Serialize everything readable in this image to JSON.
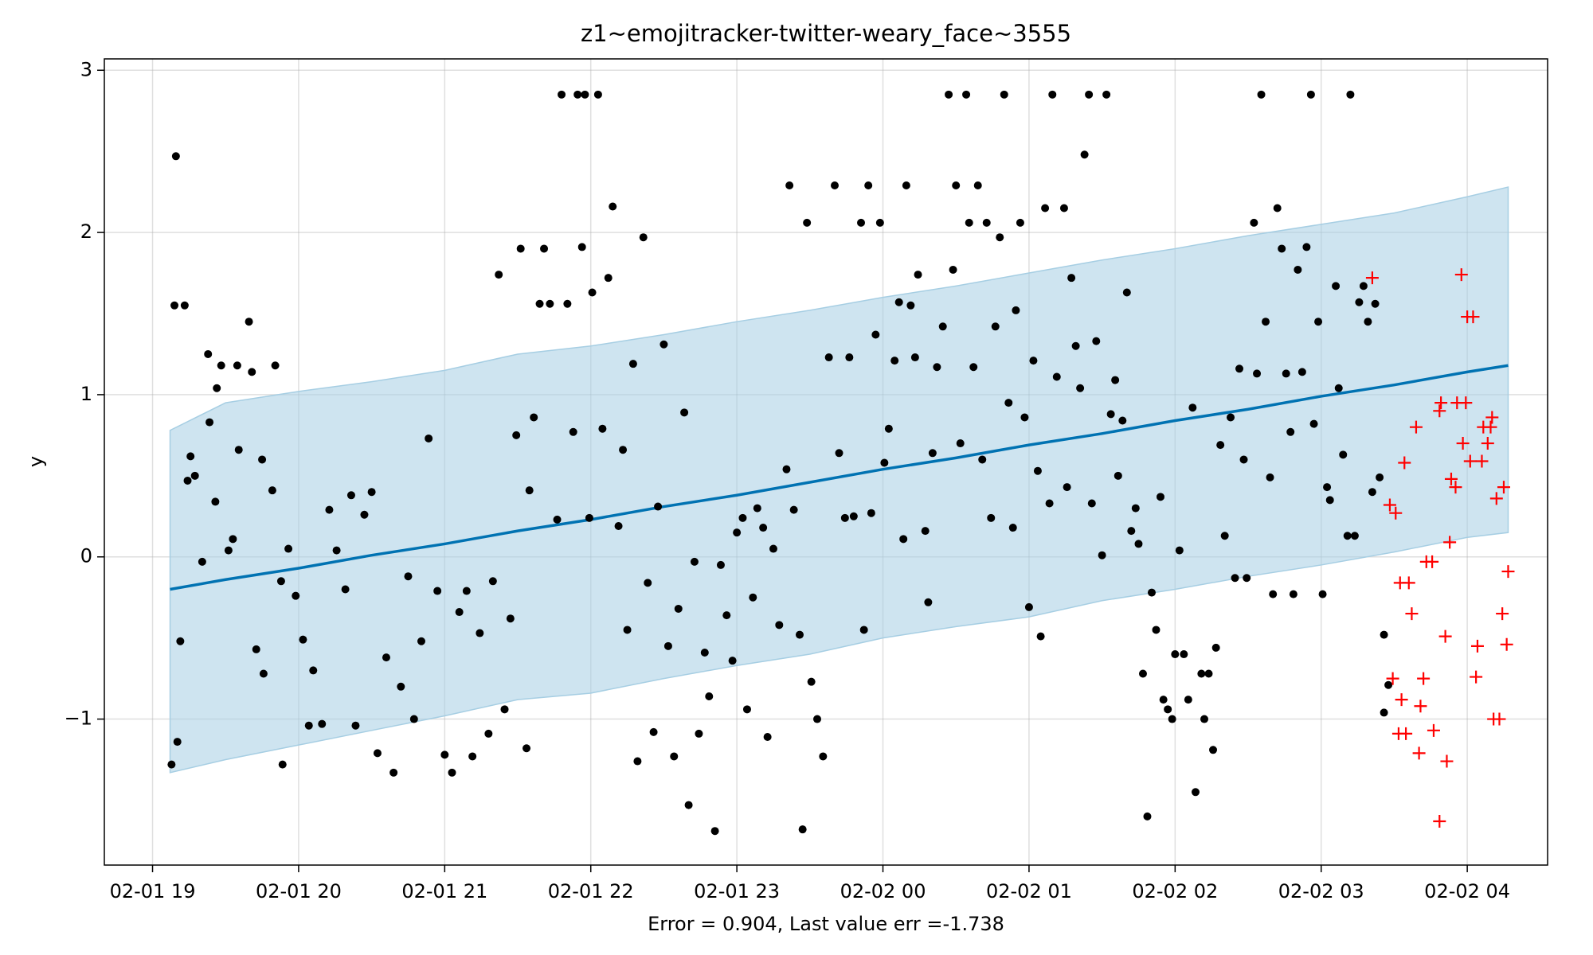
{
  "chart_data": {
    "type": "scatter",
    "title": "z1~emojitracker-twitter-weary_face~3555",
    "xlabel": "Error = 0.904, Last value err =-1.738",
    "ylabel": "y",
    "xlim": [
      -0.33,
      9.55
    ],
    "ylim": [
      -1.9,
      3.07
    ],
    "xticks": [
      {
        "value": 0,
        "label": "02-01 19"
      },
      {
        "value": 1,
        "label": "02-01 20"
      },
      {
        "value": 2,
        "label": "02-01 21"
      },
      {
        "value": 3,
        "label": "02-01 22"
      },
      {
        "value": 4,
        "label": "02-01 23"
      },
      {
        "value": 5,
        "label": "02-02 00"
      },
      {
        "value": 6,
        "label": "02-02 01"
      },
      {
        "value": 7,
        "label": "02-02 02"
      },
      {
        "value": 8,
        "label": "02-02 03"
      },
      {
        "value": 9,
        "label": "02-02 04"
      }
    ],
    "yticks": [
      {
        "value": -1,
        "label": "−1"
      },
      0,
      1,
      2,
      3
    ],
    "grid": true,
    "series": [
      {
        "type": "band",
        "color": "#a6cee3",
        "x": [
          0.12,
          0.5,
          1,
          1.5,
          2,
          2.5,
          3,
          3.5,
          4,
          4.5,
          5,
          5.5,
          6,
          6.5,
          7,
          7.5,
          8,
          8.5,
          9,
          9.28
        ],
        "upper": [
          0.78,
          0.95,
          1.02,
          1.08,
          1.15,
          1.25,
          1.3,
          1.37,
          1.45,
          1.52,
          1.6,
          1.67,
          1.75,
          1.83,
          1.9,
          1.98,
          2.05,
          2.12,
          2.22,
          2.28
        ],
        "lower": [
          -1.33,
          -1.25,
          -1.16,
          -1.07,
          -0.98,
          -0.88,
          -0.84,
          -0.75,
          -0.67,
          -0.6,
          -0.5,
          -0.43,
          -0.37,
          -0.27,
          -0.2,
          -0.12,
          -0.05,
          0.03,
          0.12,
          0.15
        ]
      },
      {
        "type": "line",
        "color": "#0072b2",
        "x": [
          0.12,
          0.5,
          1,
          1.5,
          2,
          2.5,
          3,
          3.5,
          4,
          4.5,
          5,
          5.5,
          6,
          6.5,
          7,
          7.5,
          8,
          8.5,
          9,
          9.28
        ],
        "values": [
          -0.2,
          -0.14,
          -0.07,
          0.01,
          0.08,
          0.16,
          0.23,
          0.31,
          0.38,
          0.46,
          0.54,
          0.61,
          0.69,
          0.76,
          0.84,
          0.91,
          0.99,
          1.06,
          1.14,
          1.18
        ]
      },
      {
        "type": "scatter",
        "marker": "dot",
        "color": "#000000",
        "x": [
          0.16,
          0.15,
          0.22,
          0.19,
          0.17,
          0.13,
          0.24,
          0.26,
          0.29,
          0.34,
          0.39,
          0.38,
          0.43,
          0.44,
          0.47,
          0.52,
          0.55,
          0.58,
          0.59,
          0.68,
          0.66,
          0.71,
          0.75,
          0.76,
          0.82,
          0.84,
          0.88,
          0.89,
          0.93,
          0.98,
          1.03,
          1.07,
          1.1,
          1.16,
          1.21,
          1.26,
          1.32,
          1.36,
          1.39,
          1.45,
          1.5,
          1.54,
          1.6,
          1.65,
          1.7,
          1.75,
          1.79,
          1.84,
          1.89,
          1.95,
          2.0,
          2.05,
          2.1,
          2.15,
          2.19,
          2.24,
          2.3,
          2.33,
          2.37,
          2.41,
          2.45,
          2.49,
          2.52,
          2.56,
          2.58,
          2.61,
          2.65,
          2.68,
          2.72,
          2.77,
          2.8,
          2.84,
          2.88,
          2.91,
          2.94,
          2.96,
          2.99,
          3.01,
          3.05,
          3.08,
          3.12,
          3.15,
          3.19,
          3.22,
          3.25,
          3.29,
          3.32,
          3.36,
          3.39,
          3.43,
          3.46,
          3.5,
          3.53,
          3.57,
          3.6,
          3.64,
          3.67,
          3.71,
          3.74,
          3.78,
          3.81,
          3.85,
          3.89,
          3.93,
          3.97,
          4.0,
          4.04,
          4.07,
          4.11,
          4.14,
          4.18,
          4.21,
          4.25,
          4.29,
          4.34,
          4.36,
          4.39,
          4.43,
          4.45,
          4.48,
          4.51,
          4.55,
          4.59,
          4.63,
          4.67,
          4.7,
          4.74,
          4.77,
          4.8,
          4.85,
          4.87,
          4.9,
          4.92,
          4.95,
          4.98,
          5.01,
          5.04,
          5.08,
          5.11,
          5.14,
          5.16,
          5.19,
          5.22,
          5.24,
          5.29,
          5.31,
          5.34,
          5.37,
          5.41,
          5.45,
          5.48,
          5.5,
          5.53,
          5.57,
          5.59,
          5.62,
          5.65,
          5.68,
          5.71,
          5.74,
          5.77,
          5.8,
          5.83,
          5.86,
          5.89,
          5.91,
          5.94,
          5.97,
          6.0,
          6.03,
          6.06,
          6.08,
          6.11,
          6.14,
          6.16,
          6.19,
          6.24,
          6.26,
          6.29,
          6.32,
          6.35,
          6.38,
          6.41,
          6.43,
          6.46,
          6.5,
          6.53,
          6.56,
          6.59,
          6.61,
          6.64,
          6.67,
          6.7,
          6.73,
          6.75,
          6.78,
          6.81,
          6.84,
          6.87,
          6.9,
          6.92,
          6.95,
          6.98,
          7.0,
          7.03,
          7.06,
          7.09,
          7.12,
          7.14,
          7.18,
          7.2,
          7.23,
          7.26,
          7.28,
          7.31,
          7.34,
          7.38,
          7.41,
          7.44,
          7.47,
          7.49,
          7.54,
          7.56,
          7.59,
          7.62,
          7.65,
          7.67,
          7.7,
          7.73,
          7.76,
          7.79,
          7.81,
          7.84,
          7.87,
          7.9,
          7.93,
          7.95,
          7.98,
          8.01,
          8.04,
          8.06,
          8.1,
          8.12,
          8.15,
          8.18,
          8.2,
          8.23,
          8.26,
          8.29,
          8.32,
          8.35,
          8.37,
          8.4,
          8.43,
          8.43,
          8.46
        ],
        "values": [
          2.47,
          1.55,
          1.55,
          -0.52,
          -1.14,
          -1.28,
          0.47,
          0.62,
          0.5,
          -0.03,
          0.83,
          1.25,
          0.34,
          1.04,
          1.18,
          0.04,
          0.11,
          1.18,
          0.66,
          1.14,
          1.45,
          -0.57,
          0.6,
          -0.72,
          0.41,
          1.18,
          -0.15,
          -1.28,
          0.05,
          -0.24,
          -0.51,
          -1.04,
          -0.7,
          -1.03,
          0.29,
          0.04,
          -0.2,
          0.38,
          -1.04,
          0.26,
          0.4,
          -1.21,
          -0.62,
          -1.33,
          -0.8,
          -0.12,
          -1.0,
          -0.52,
          0.73,
          -0.21,
          -1.22,
          -1.33,
          -0.34,
          -0.21,
          -1.23,
          -0.47,
          -1.09,
          -0.15,
          1.74,
          -0.94,
          -0.38,
          0.75,
          1.9,
          -1.18,
          0.41,
          0.86,
          1.56,
          1.9,
          1.56,
          0.23,
          2.85,
          1.56,
          0.77,
          2.85,
          1.91,
          2.85,
          0.24,
          1.63,
          2.85,
          0.79,
          1.72,
          2.16,
          0.19,
          0.66,
          -0.45,
          1.19,
          -1.26,
          1.97,
          -0.16,
          -1.08,
          0.31,
          1.31,
          -0.55,
          -1.23,
          -0.32,
          0.89,
          -1.53,
          -0.03,
          -1.09,
          -0.59,
          -0.86,
          -1.69,
          -0.05,
          -0.36,
          -0.64,
          0.15,
          0.24,
          -0.94,
          -0.25,
          0.3,
          0.18,
          -1.11,
          0.05,
          -0.42,
          0.54,
          2.29,
          0.29,
          -0.48,
          -1.68,
          2.06,
          -0.77,
          -1.0,
          -1.23,
          1.23,
          2.29,
          0.64,
          0.24,
          1.23,
          0.25,
          2.06,
          -0.45,
          2.29,
          0.27,
          1.37,
          2.06,
          0.58,
          0.79,
          1.21,
          1.57,
          0.11,
          2.29,
          1.55,
          1.23,
          1.74,
          0.16,
          -0.28,
          0.64,
          1.17,
          1.42,
          2.85,
          1.77,
          2.29,
          0.7,
          2.85,
          2.06,
          1.17,
          2.29,
          0.6,
          2.06,
          0.24,
          1.42,
          1.97,
          2.85,
          0.95,
          0.18,
          1.52,
          2.06,
          0.86,
          -0.31,
          1.21,
          0.53,
          -0.49,
          2.15,
          0.33,
          2.85,
          1.11,
          2.15,
          0.43,
          1.72,
          1.3,
          1.04,
          2.48,
          2.85,
          0.33,
          1.33,
          0.01,
          2.85,
          0.88,
          1.09,
          0.5,
          0.84,
          1.63,
          0.16,
          0.3,
          0.08,
          -0.72,
          -1.6,
          -0.22,
          -0.45,
          0.37,
          -0.88,
          -0.94,
          -1.0,
          -0.6,
          0.04,
          -0.6,
          -0.88,
          0.92,
          -1.45,
          -0.72,
          -1.0,
          -0.72,
          -1.19,
          -0.56,
          0.69,
          0.13,
          0.86,
          -0.13,
          1.16,
          0.6,
          -0.13,
          2.06,
          1.13,
          2.85,
          1.45,
          0.49,
          -0.23,
          2.15,
          1.9,
          1.13,
          0.77,
          -0.23,
          1.77,
          1.14,
          1.91,
          2.85,
          0.82,
          1.45,
          -0.23,
          0.43,
          0.35,
          1.67,
          1.04,
          0.63,
          0.13,
          2.85,
          0.13,
          1.57,
          1.67,
          1.45,
          0.4,
          1.56,
          0.49,
          -0.48,
          -0.96,
          -0.79
        ]
      },
      {
        "type": "scatter",
        "marker": "plus",
        "color": "#ff0000",
        "x": [
          8.35,
          8.47,
          8.51,
          8.54,
          8.57,
          8.6,
          8.62,
          8.65,
          8.49,
          8.55,
          8.53,
          8.58,
          8.67,
          8.7,
          8.68,
          8.72,
          8.76,
          8.77,
          8.81,
          8.81,
          8.82,
          8.85,
          8.86,
          8.88,
          8.89,
          8.92,
          8.93,
          8.96,
          8.97,
          8.99,
          9.0,
          9.02,
          9.04,
          9.06,
          9.07,
          9.1,
          9.11,
          9.14,
          9.16,
          9.17,
          9.18,
          9.2,
          9.22,
          9.24,
          9.25,
          9.27,
          9.28
        ],
        "values": [
          1.72,
          0.32,
          0.27,
          -0.16,
          0.58,
          -0.16,
          -0.35,
          0.8,
          -0.75,
          -0.88,
          -1.09,
          -1.09,
          -1.21,
          -0.75,
          -0.92,
          -0.03,
          -0.03,
          -1.07,
          -1.63,
          0.9,
          0.95,
          -0.49,
          -1.26,
          0.09,
          0.48,
          0.43,
          0.95,
          1.74,
          0.7,
          0.95,
          1.48,
          0.59,
          1.48,
          -0.74,
          -0.55,
          0.59,
          0.8,
          0.7,
          0.8,
          0.86,
          -1.0,
          0.36,
          -1.0,
          -0.35,
          0.43,
          -0.54,
          -0.09
        ]
      }
    ]
  }
}
